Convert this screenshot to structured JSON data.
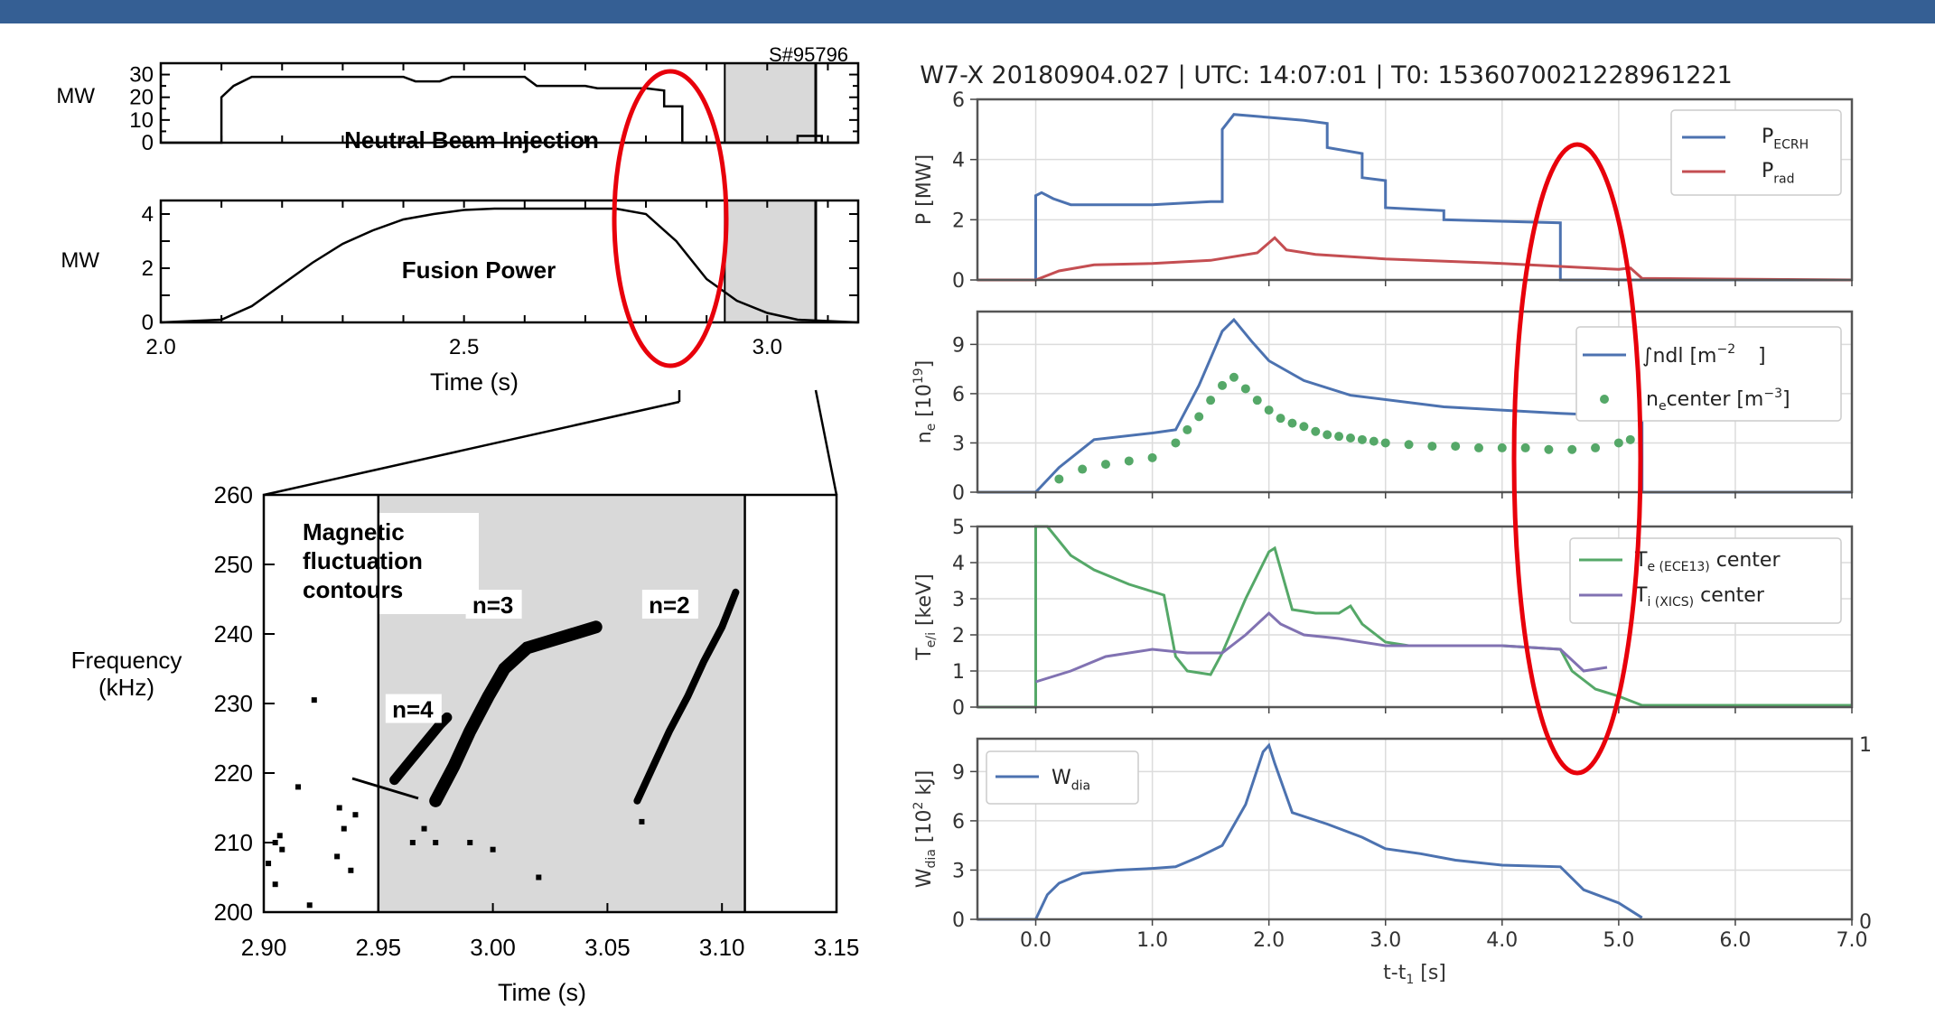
{
  "header": {
    "banner_color": "#355f94"
  },
  "annotation_color": "#e8000b",
  "chart_data": [
    {
      "id": "nbi",
      "type": "line",
      "title": "",
      "xlabel": "Time (s)",
      "ylabel": "MW",
      "shot_label": "S#95796",
      "inner_label": "Neutral Beam Injection",
      "xlim": [
        2.0,
        3.15
      ],
      "ylim": [
        0,
        35
      ],
      "yticks": [
        "0",
        "10",
        "20",
        "30"
      ],
      "shaded_x": [
        2.93,
        3.08
      ],
      "series": [
        {
          "x": [
            2.0,
            2.1,
            2.1,
            2.12,
            2.15,
            2.2,
            2.3,
            2.4,
            2.42,
            2.46,
            2.48,
            2.6,
            2.62,
            2.7,
            2.72,
            2.8,
            2.83,
            2.83,
            2.86,
            2.86,
            2.93,
            3.0,
            3.05,
            3.05,
            3.09,
            3.09,
            3.15
          ],
          "y": [
            0,
            0,
            20,
            25,
            29,
            29,
            29,
            29,
            27,
            27,
            29,
            29,
            25,
            25,
            24,
            24,
            23,
            16,
            16,
            0,
            0,
            0,
            0,
            3,
            3,
            0,
            0
          ]
        }
      ]
    },
    {
      "id": "fusion",
      "type": "line",
      "title": "",
      "xlabel": "Time (s)",
      "ylabel": "MW",
      "inner_label": "Fusion Power",
      "xlim": [
        2.0,
        3.15
      ],
      "ylim": [
        0,
        4.5
      ],
      "xticks": [
        "2.0",
        "2.5",
        "3.0"
      ],
      "yticks": [
        "0",
        "2",
        "4"
      ],
      "shaded_x": [
        2.93,
        3.08
      ],
      "series": [
        {
          "x": [
            2.0,
            2.1,
            2.15,
            2.2,
            2.25,
            2.3,
            2.35,
            2.4,
            2.45,
            2.5,
            2.55,
            2.6,
            2.65,
            2.7,
            2.75,
            2.8,
            2.85,
            2.9,
            2.95,
            3.0,
            3.05,
            3.1,
            3.15
          ],
          "y": [
            0.0,
            0.1,
            0.6,
            1.4,
            2.2,
            2.9,
            3.4,
            3.8,
            4.0,
            4.15,
            4.2,
            4.2,
            4.2,
            4.2,
            4.2,
            4.0,
            3.0,
            1.6,
            0.8,
            0.35,
            0.1,
            0.05,
            0.0
          ]
        }
      ]
    },
    {
      "id": "spectrogram",
      "type": "scatter",
      "title": "",
      "xlabel": "Time (s)",
      "ylabel": "Frequency\n(kHz)",
      "inner_label": "Magnetic\nfluctuation\ncontours",
      "xlim": [
        2.9,
        3.15
      ],
      "ylim": [
        200,
        260
      ],
      "xticks": [
        "2.90",
        "2.95",
        "3.00",
        "3.05",
        "3.10",
        "3.15"
      ],
      "yticks": [
        "200",
        "210",
        "220",
        "230",
        "240",
        "250",
        "260"
      ],
      "shaded_x": [
        2.95,
        3.11
      ],
      "mode_labels": [
        {
          "text": "n=4",
          "x": 2.965,
          "y": 228.5
        },
        {
          "text": "n=3",
          "x": 3.0,
          "y": 243.5
        },
        {
          "text": "n=2",
          "x": 3.077,
          "y": 243.5
        }
      ],
      "series": [
        {
          "name": "n=4",
          "x": [
            2.957,
            2.962,
            2.967,
            2.972,
            2.977,
            2.98
          ],
          "y": [
            219,
            221,
            223,
            225,
            227,
            228
          ]
        },
        {
          "name": "n=3",
          "x": [
            2.975,
            2.983,
            2.99,
            2.998,
            3.005,
            3.015,
            3.025,
            3.035,
            3.045
          ],
          "y": [
            216,
            221,
            226,
            231,
            235,
            238,
            239,
            240,
            241
          ]
        },
        {
          "name": "n=2",
          "x": [
            3.063,
            3.07,
            3.077,
            3.085,
            3.092,
            3.1,
            3.106
          ],
          "y": [
            216,
            221,
            226,
            231,
            236,
            241,
            246
          ]
        }
      ]
    },
    {
      "id": "w7x_power",
      "type": "line",
      "title": "W7-X 20180904.027 | UTC: 14:07:01 | T0: 1536070021228961221",
      "ylabel": "P [MW]",
      "xlim": [
        -0.5,
        7.0
      ],
      "ylim": [
        0,
        6
      ],
      "yticks": [
        "0",
        "2",
        "4",
        "6"
      ],
      "legend": "top-right",
      "series": [
        {
          "name": "P_ECRH",
          "color": "#4c72b0",
          "x": [
            -0.5,
            0.0,
            0.0,
            0.05,
            0.15,
            0.3,
            1.0,
            1.5,
            1.6,
            1.6,
            1.7,
            2.0,
            2.3,
            2.5,
            2.5,
            2.8,
            2.8,
            3.0,
            3.0,
            3.5,
            3.5,
            4.5,
            4.5,
            5.2,
            7.0
          ],
          "y": [
            0,
            0,
            2.8,
            2.9,
            2.7,
            2.5,
            2.5,
            2.6,
            2.6,
            5.0,
            5.5,
            5.4,
            5.3,
            5.2,
            4.4,
            4.2,
            3.4,
            3.3,
            2.4,
            2.3,
            2.0,
            1.9,
            0,
            0,
            0
          ]
        },
        {
          "name": "P_rad",
          "color": "#c44e52",
          "x": [
            -0.5,
            0.0,
            0.2,
            0.5,
            1.0,
            1.5,
            1.9,
            2.05,
            2.15,
            2.4,
            3.0,
            4.0,
            4.5,
            5.0,
            5.1,
            5.2,
            7.0
          ],
          "y": [
            0,
            0,
            0.3,
            0.5,
            0.55,
            0.65,
            0.9,
            1.4,
            1.0,
            0.85,
            0.7,
            0.55,
            0.45,
            0.35,
            0.4,
            0.05,
            0.0
          ]
        }
      ]
    },
    {
      "id": "w7x_density",
      "type": "line",
      "ylabel": "n_e [10^19]",
      "xlim": [
        -0.5,
        7.0
      ],
      "ylim": [
        0,
        11
      ],
      "yticks": [
        "0",
        "3",
        "6",
        "9"
      ],
      "legend": "top-right",
      "series": [
        {
          "name": "∫ndl [m^-2]",
          "color": "#4c72b0",
          "x": [
            -0.5,
            0.0,
            0.2,
            0.5,
            1.0,
            1.2,
            1.4,
            1.6,
            1.7,
            1.85,
            2.0,
            2.3,
            2.7,
            3.5,
            4.5,
            5.2,
            5.2,
            7.0
          ],
          "y": [
            0,
            0,
            1.5,
            3.2,
            3.6,
            3.8,
            6.5,
            9.8,
            10.5,
            9.2,
            8.0,
            6.8,
            5.9,
            5.2,
            4.8,
            4.6,
            0,
            0
          ]
        },
        {
          "name": "n_e center [m^-3]",
          "color": "#55a868",
          "marker": "dot",
          "x": [
            0.2,
            0.4,
            0.6,
            0.8,
            1.0,
            1.2,
            1.3,
            1.4,
            1.5,
            1.6,
            1.7,
            1.8,
            1.9,
            2.0,
            2.1,
            2.2,
            2.3,
            2.4,
            2.5,
            2.6,
            2.7,
            2.8,
            2.9,
            3.0,
            3.2,
            3.4,
            3.6,
            3.8,
            4.0,
            4.2,
            4.4,
            4.6,
            4.8,
            5.0,
            5.1
          ],
          "y": [
            0.8,
            1.4,
            1.7,
            1.9,
            2.1,
            3.0,
            3.8,
            4.6,
            5.6,
            6.5,
            7.0,
            6.3,
            5.6,
            5.0,
            4.5,
            4.2,
            4.0,
            3.7,
            3.5,
            3.4,
            3.3,
            3.2,
            3.1,
            3.0,
            2.9,
            2.8,
            2.8,
            2.7,
            2.7,
            2.7,
            2.6,
            2.6,
            2.7,
            3.0,
            3.2
          ]
        }
      ]
    },
    {
      "id": "w7x_temperature",
      "type": "line",
      "ylabel": "T_e/i [keV]",
      "xlim": [
        -0.5,
        7.0
      ],
      "ylim": [
        0,
        5
      ],
      "yticks": [
        "0",
        "1",
        "2",
        "3",
        "4",
        "5"
      ],
      "legend": "top-right",
      "series": [
        {
          "name": "T_e(ECE13) center",
          "color": "#55a868",
          "x": [
            -0.5,
            0.0,
            0.0,
            0.1,
            0.3,
            0.5,
            0.8,
            1.0,
            1.1,
            1.2,
            1.3,
            1.5,
            1.6,
            1.8,
            2.0,
            2.05,
            2.2,
            2.4,
            2.6,
            2.7,
            2.8,
            3.0,
            3.2,
            3.5,
            4.0,
            4.5,
            4.6,
            4.8,
            5.0,
            5.2,
            7.0
          ],
          "y": [
            0,
            0,
            5.0,
            5.0,
            4.2,
            3.8,
            3.4,
            3.2,
            3.1,
            1.4,
            1.0,
            0.9,
            1.5,
            3.0,
            4.3,
            4.4,
            2.7,
            2.6,
            2.6,
            2.8,
            2.3,
            1.8,
            1.7,
            1.7,
            1.7,
            1.6,
            1.0,
            0.5,
            0.3,
            0.05,
            0.05
          ]
        },
        {
          "name": "T_i(XICS) center",
          "color": "#8172b2",
          "x": [
            0.0,
            0.3,
            0.6,
            1.0,
            1.3,
            1.6,
            1.8,
            2.0,
            2.1,
            2.3,
            2.6,
            3.0,
            3.5,
            4.0,
            4.5,
            4.7,
            4.9
          ],
          "y": [
            0.7,
            1.0,
            1.4,
            1.6,
            1.5,
            1.5,
            2.0,
            2.6,
            2.3,
            2.0,
            1.9,
            1.7,
            1.7,
            1.7,
            1.6,
            1.0,
            1.1
          ]
        }
      ]
    },
    {
      "id": "w7x_energy",
      "type": "line",
      "xlabel": "t-t_1 [s]",
      "ylabel": "W_dia [10^2 kJ]",
      "xlim": [
        -0.5,
        7.0
      ],
      "ylim": [
        0,
        11
      ],
      "xticks": [
        "0.0",
        "1.0",
        "2.0",
        "3.0",
        "4.0",
        "5.0",
        "6.0",
        "7.0"
      ],
      "yticks": [
        "0",
        "3",
        "6",
        "9"
      ],
      "right_ticks": [
        "0",
        "1"
      ],
      "legend": "top-left",
      "series": [
        {
          "name": "W_dia",
          "color": "#4c72b0",
          "x": [
            -0.5,
            0.0,
            0.1,
            0.2,
            0.4,
            0.7,
            1.0,
            1.2,
            1.4,
            1.6,
            1.8,
            1.95,
            2.0,
            2.05,
            2.2,
            2.5,
            2.8,
            3.0,
            3.3,
            3.6,
            4.0,
            4.5,
            4.7,
            5.0,
            5.2
          ],
          "y": [
            0,
            0,
            1.5,
            2.2,
            2.8,
            3.0,
            3.1,
            3.2,
            3.8,
            4.5,
            7.0,
            10.2,
            10.6,
            9.5,
            6.5,
            5.8,
            5.0,
            4.3,
            4.0,
            3.6,
            3.3,
            3.2,
            1.8,
            1.0,
            0.1
          ]
        }
      ]
    }
  ]
}
